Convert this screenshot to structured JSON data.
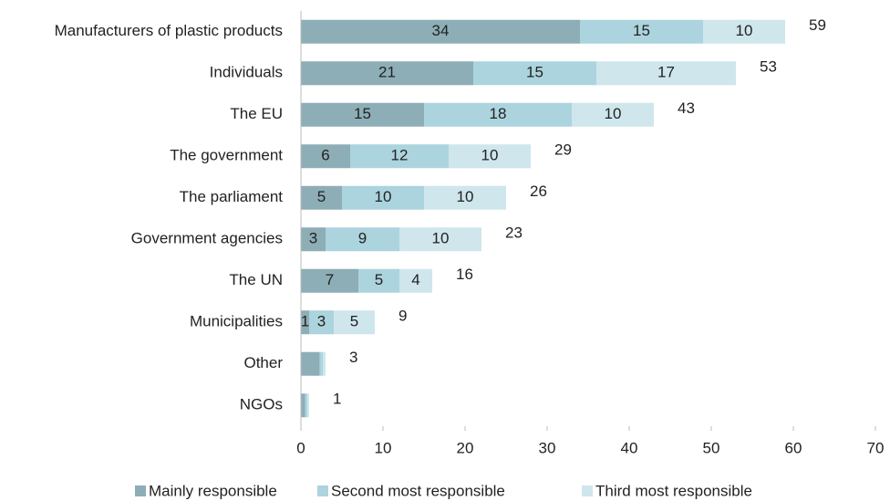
{
  "chart_data": {
    "type": "stacked-barh",
    "categories": [
      "Manufacturers of plastic products",
      "Individuals",
      "The EU",
      "The government",
      "The parliament",
      "Government agencies",
      "The UN",
      "Municipalities",
      "Other",
      "NGOs"
    ],
    "series": [
      {
        "name": "Mainly responsible",
        "color": "#8daeb6",
        "values": [
          34,
          21,
          15,
          6,
          5,
          3,
          7,
          1,
          2.3,
          0.5
        ],
        "value_labels": [
          "34",
          "21",
          "15",
          "6",
          "5",
          "3",
          "7",
          "1",
          null,
          null
        ]
      },
      {
        "name": "Second most responsible",
        "color": "#acd4de",
        "values": [
          15,
          15,
          18,
          12,
          10,
          9,
          5,
          3,
          0.4,
          0.3
        ],
        "value_labels": [
          "15",
          "15",
          "18",
          "12",
          "10",
          "9",
          "5",
          "3",
          null,
          null
        ]
      },
      {
        "name": "Third most responsible",
        "color": "#cfe6ec",
        "values": [
          10,
          17,
          10,
          10,
          10,
          10,
          4,
          5,
          0.3,
          0.2
        ],
        "value_labels": [
          "10",
          "17",
          "10",
          "10",
          "10",
          "10",
          "4",
          "5",
          null,
          null
        ]
      }
    ],
    "totals": [
      59,
      53,
      43,
      29,
      26,
      23,
      16,
      9,
      3,
      1
    ],
    "xlim": [
      0,
      70
    ],
    "xticks": [
      0,
      10,
      20,
      30,
      40,
      50,
      60,
      70
    ],
    "grid": false,
    "legend": "bottom"
  }
}
